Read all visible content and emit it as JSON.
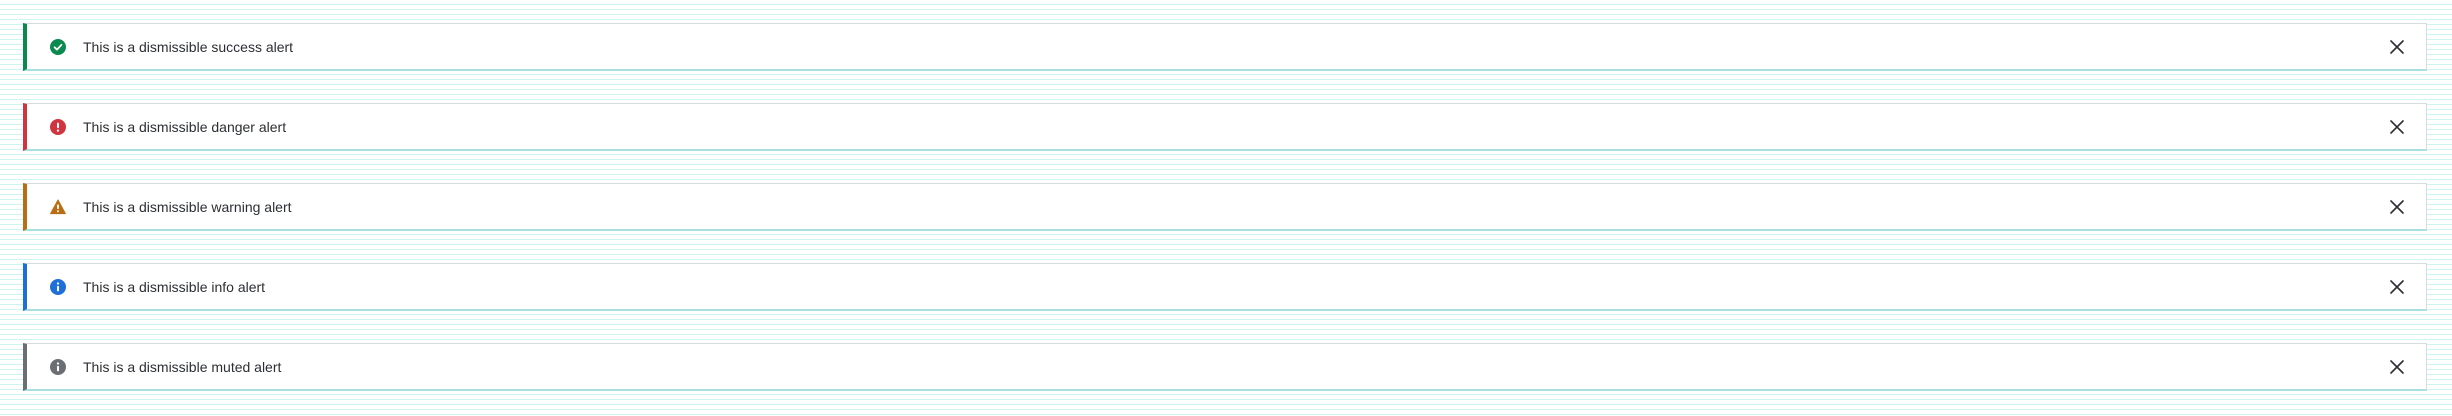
{
  "alerts": [
    {
      "variant": "success",
      "icon": "check-circle-icon",
      "accent": "#0a8a4e",
      "text": "This is a dismissible success alert"
    },
    {
      "variant": "danger",
      "icon": "exclamation-circle-icon",
      "accent": "#d0353f",
      "text": "This is a dismissible danger alert"
    },
    {
      "variant": "warning",
      "icon": "warning-triangle-icon",
      "accent": "#b86e14",
      "text": "This is a dismissible warning alert"
    },
    {
      "variant": "info",
      "icon": "info-circle-icon",
      "accent": "#1f6fd8",
      "text": "This is a dismissible info alert"
    },
    {
      "variant": "muted",
      "icon": "info-circle-icon",
      "accent": "#6b6f74",
      "text": "This is a dismissible muted alert"
    }
  ],
  "close_icon": "close-icon"
}
